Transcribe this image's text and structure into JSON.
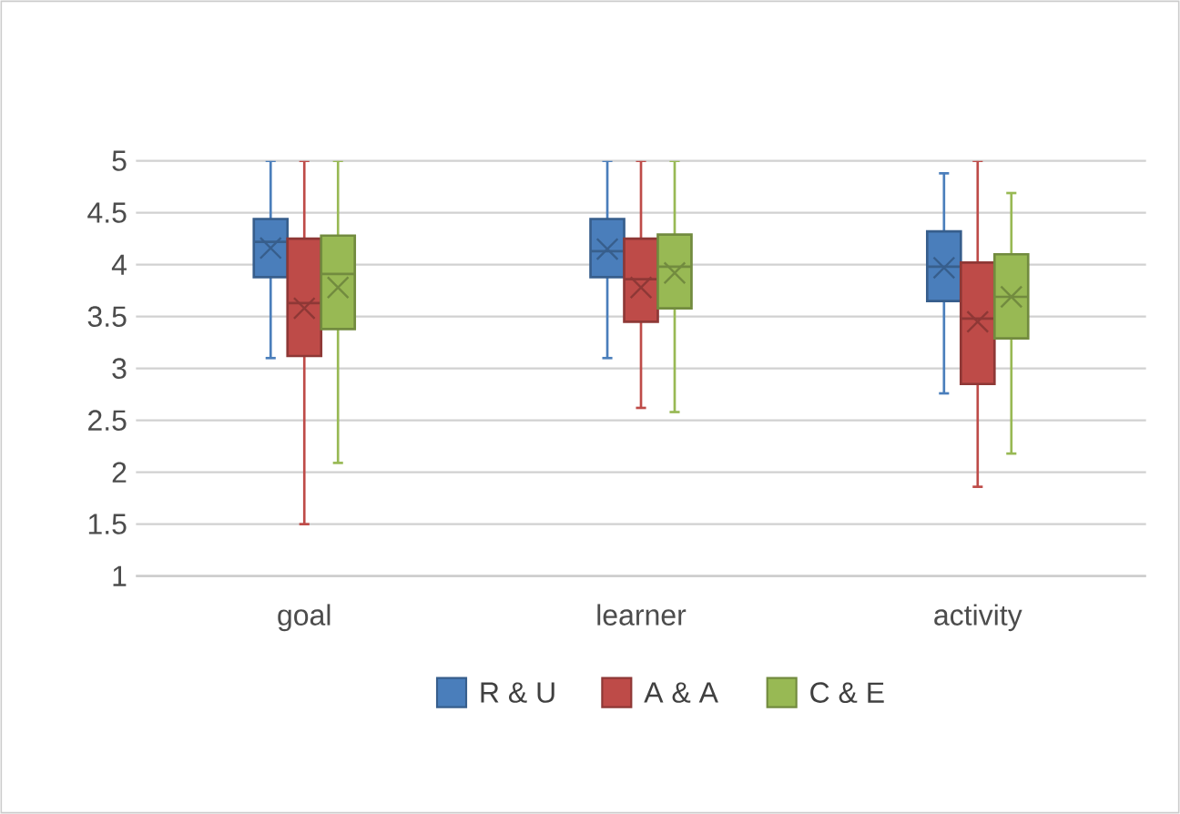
{
  "chart_data": {
    "type": "box",
    "categories": [
      "goal",
      "learner",
      "activity"
    ],
    "series": [
      {
        "name": "R & U",
        "color": "#4a7ebb",
        "boxes": [
          {
            "low": 3.1,
            "q1": 3.88,
            "median": 4.22,
            "q3": 4.44,
            "high": 5,
            "mean": 4.16
          },
          {
            "low": 3.1,
            "q1": 3.88,
            "median": 4.13,
            "q3": 4.44,
            "high": 5,
            "mean": 4.15
          },
          {
            "low": 2.76,
            "q1": 3.65,
            "median": 3.98,
            "q3": 4.32,
            "high": 4.88,
            "mean": 3.97
          }
        ]
      },
      {
        "name": "A & A",
        "color": "#be4b48",
        "boxes": [
          {
            "low": 1.5,
            "q1": 3.12,
            "median": 3.63,
            "q3": 4.25,
            "high": 5,
            "mean": 3.58
          },
          {
            "low": 2.62,
            "q1": 3.45,
            "median": 3.86,
            "q3": 4.25,
            "high": 5,
            "mean": 3.78
          },
          {
            "low": 1.86,
            "q1": 2.85,
            "median": 3.48,
            "q3": 4.02,
            "high": 5,
            "mean": 3.45
          }
        ]
      },
      {
        "name": "C & E",
        "color": "#98b954",
        "boxes": [
          {
            "low": 2.09,
            "q1": 3.38,
            "median": 3.91,
            "q3": 4.28,
            "high": 5,
            "mean": 3.78
          },
          {
            "low": 2.58,
            "q1": 3.58,
            "median": 3.98,
            "q3": 4.29,
            "high": 5,
            "mean": 3.92
          },
          {
            "low": 2.18,
            "q1": 3.29,
            "median": 3.69,
            "q3": 4.1,
            "high": 4.69,
            "mean": 3.69
          }
        ]
      }
    ],
    "ylim": [
      1,
      5
    ],
    "yticks": [
      1,
      1.5,
      2,
      2.5,
      3,
      3.5,
      4,
      4.5,
      5
    ],
    "grid": "y",
    "legend": "bottom"
  }
}
